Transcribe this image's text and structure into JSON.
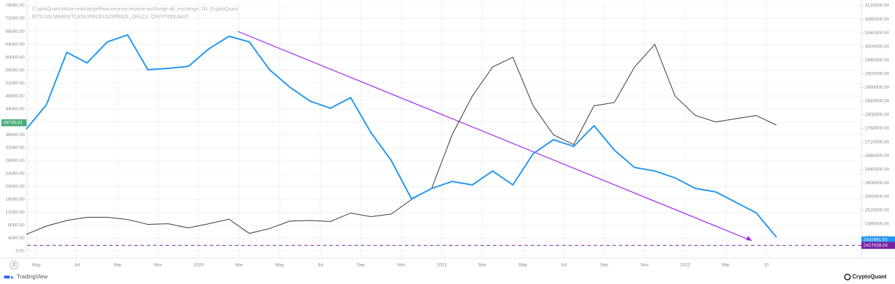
{
  "chart_data": {
    "type": "line",
    "title": "CryptoQuant:bitcoin-exchangeflows-reserve:reserve-exchange-all_exchange, 1D, CryptoQuant",
    "subtitle": "BITCOIN:MARKETDATA:PRICEUSD/PRICE_OHLCV, CRYPTOQUANT",
    "x": [
      "2019-04",
      "2019-05",
      "2019-06",
      "2019-07",
      "2019-08",
      "2019-09",
      "2019-10",
      "2019-11",
      "2019-12",
      "2020-01",
      "2020-02",
      "2020-03",
      "2020-04",
      "2020-05",
      "2020-06",
      "2020-07",
      "2020-08",
      "2020-09",
      "2020-10",
      "2020-11",
      "2020-12",
      "2021-01",
      "2021-02",
      "2021-03",
      "2021-04",
      "2021-05",
      "2021-06",
      "2021-07",
      "2021-08",
      "2021-09",
      "2021-10",
      "2021-11",
      "2021-12",
      "2022-01",
      "2022-02",
      "2022-03",
      "2022-04",
      "2022-05"
    ],
    "series": [
      {
        "name": "Price",
        "color": "#333333",
        "axis": "y",
        "values": [
          5200,
          7800,
          9500,
          10500,
          10500,
          9800,
          8300,
          8500,
          7200,
          8500,
          9900,
          5500,
          7000,
          9300,
          9500,
          9200,
          11800,
          10700,
          11500,
          16000,
          19500,
          36000,
          48000,
          57000,
          60000,
          45000,
          36000,
          33000,
          45000,
          46000,
          57000,
          64000,
          48000,
          42000,
          40000,
          41000,
          42000,
          39000
        ]
      },
      {
        "name": "Reserve",
        "color": "#2196f3",
        "axis": "y2",
        "values": [
          2758000,
          2829500,
          2983000,
          2952000,
          3013600,
          3034000,
          2932000,
          2936000,
          2942000,
          2993000,
          3030000,
          3013600,
          2932000,
          2880700,
          2839800,
          2819300,
          2850000,
          2747700,
          2666000,
          2553400,
          2584000,
          2604500,
          2594300,
          2635000,
          2594300,
          2686000,
          2727000,
          2707000,
          2768000,
          2696600,
          2645500,
          2635000,
          2614800,
          2584000,
          2573900,
          2543200,
          2512500,
          2440900
        ]
      }
    ],
    "price_marker": 39745.01,
    "reserve_marker": 2432981.92,
    "hline": {
      "value": 2417028.04,
      "color": "#7b1fa2"
    },
    "ylim": [
      0,
      76000
    ],
    "yticks": [
      {
        "value": 0,
        "label": "0.00"
      },
      {
        "value": 4000,
        "label": "4000.00"
      },
      {
        "value": 8000,
        "label": "8000.00"
      },
      {
        "value": 12000,
        "label": "12000.00"
      },
      {
        "value": 16000,
        "label": "16000.00"
      },
      {
        "value": 20000,
        "label": "20000.00"
      },
      {
        "value": 24000,
        "label": "24000.00"
      },
      {
        "value": 28000,
        "label": "28000.00"
      },
      {
        "value": 32000,
        "label": "32000.00"
      },
      {
        "value": 36000,
        "label": "36000.00"
      },
      {
        "value": 40000,
        "label": "40000.00"
      },
      {
        "value": 44000,
        "label": "44000.00"
      },
      {
        "value": 48000,
        "label": "48000.00"
      },
      {
        "value": 52000,
        "label": "52000.00"
      },
      {
        "value": 56000,
        "label": "56000.00"
      },
      {
        "value": 60000,
        "label": "60000.00"
      },
      {
        "value": 64000,
        "label": "64000.00"
      },
      {
        "value": 68000,
        "label": "68000.00"
      },
      {
        "value": 72000,
        "label": "72000.00"
      },
      {
        "value": 76000,
        "label": "76000.00"
      }
    ],
    "y2lim": [
      2400000,
      3120000
    ],
    "y2ticks": [
      {
        "value": 2440000,
        "label": "2440000.00"
      },
      {
        "value": 2480000,
        "label": "2480000.00"
      },
      {
        "value": 2520000,
        "label": "2520000.00"
      },
      {
        "value": 2560000,
        "label": "2560000.00"
      },
      {
        "value": 2600000,
        "label": "2600000.00"
      },
      {
        "value": 2640000,
        "label": "2640000.00"
      },
      {
        "value": 2680000,
        "label": "2680000.00"
      },
      {
        "value": 2720000,
        "label": "2720000.00"
      },
      {
        "value": 2760000,
        "label": "2760000.00"
      },
      {
        "value": 2800000,
        "label": "2800000.00"
      },
      {
        "value": 2840000,
        "label": "2840000.00"
      },
      {
        "value": 2880000,
        "label": "2880000.00"
      },
      {
        "value": 2920000,
        "label": "2920000.00"
      },
      {
        "value": 2960000,
        "label": "2960000.00"
      },
      {
        "value": 3000000,
        "label": "3000000.00"
      },
      {
        "value": 3040000,
        "label": "3040000.00"
      },
      {
        "value": 3080000,
        "label": "3080000.00"
      },
      {
        "value": 3120000,
        "label": "3120000.00"
      }
    ],
    "xticks": [
      {
        "value": "2019-05",
        "label": "May"
      },
      {
        "value": "2019-07",
        "label": "Jul"
      },
      {
        "value": "2019-09",
        "label": "Sep"
      },
      {
        "value": "2019-11",
        "label": "Nov"
      },
      {
        "value": "2020-01",
        "label": "2020"
      },
      {
        "value": "2020-03",
        "label": "Mar"
      },
      {
        "value": "2020-05",
        "label": "May"
      },
      {
        "value": "2020-07",
        "label": "Jul"
      },
      {
        "value": "2020-09",
        "label": "Sep"
      },
      {
        "value": "2020-11",
        "label": "Nov"
      },
      {
        "value": "2021-01",
        "label": "2021"
      },
      {
        "value": "2021-03",
        "label": "Mar"
      },
      {
        "value": "2021-05",
        "label": "May"
      },
      {
        "value": "2021-07",
        "label": "Jul"
      },
      {
        "value": "2021-09",
        "label": "Sep"
      },
      {
        "value": "2021-11",
        "label": "Nov"
      },
      {
        "value": "2022-01",
        "label": "2022"
      },
      {
        "value": "2022-03",
        "label": "Mar"
      },
      {
        "value": "2022-05",
        "label": "10"
      }
    ],
    "grid": true
  },
  "footer": {
    "left": "TradingView",
    "right": "CryptoQuant",
    "button": "Z"
  }
}
